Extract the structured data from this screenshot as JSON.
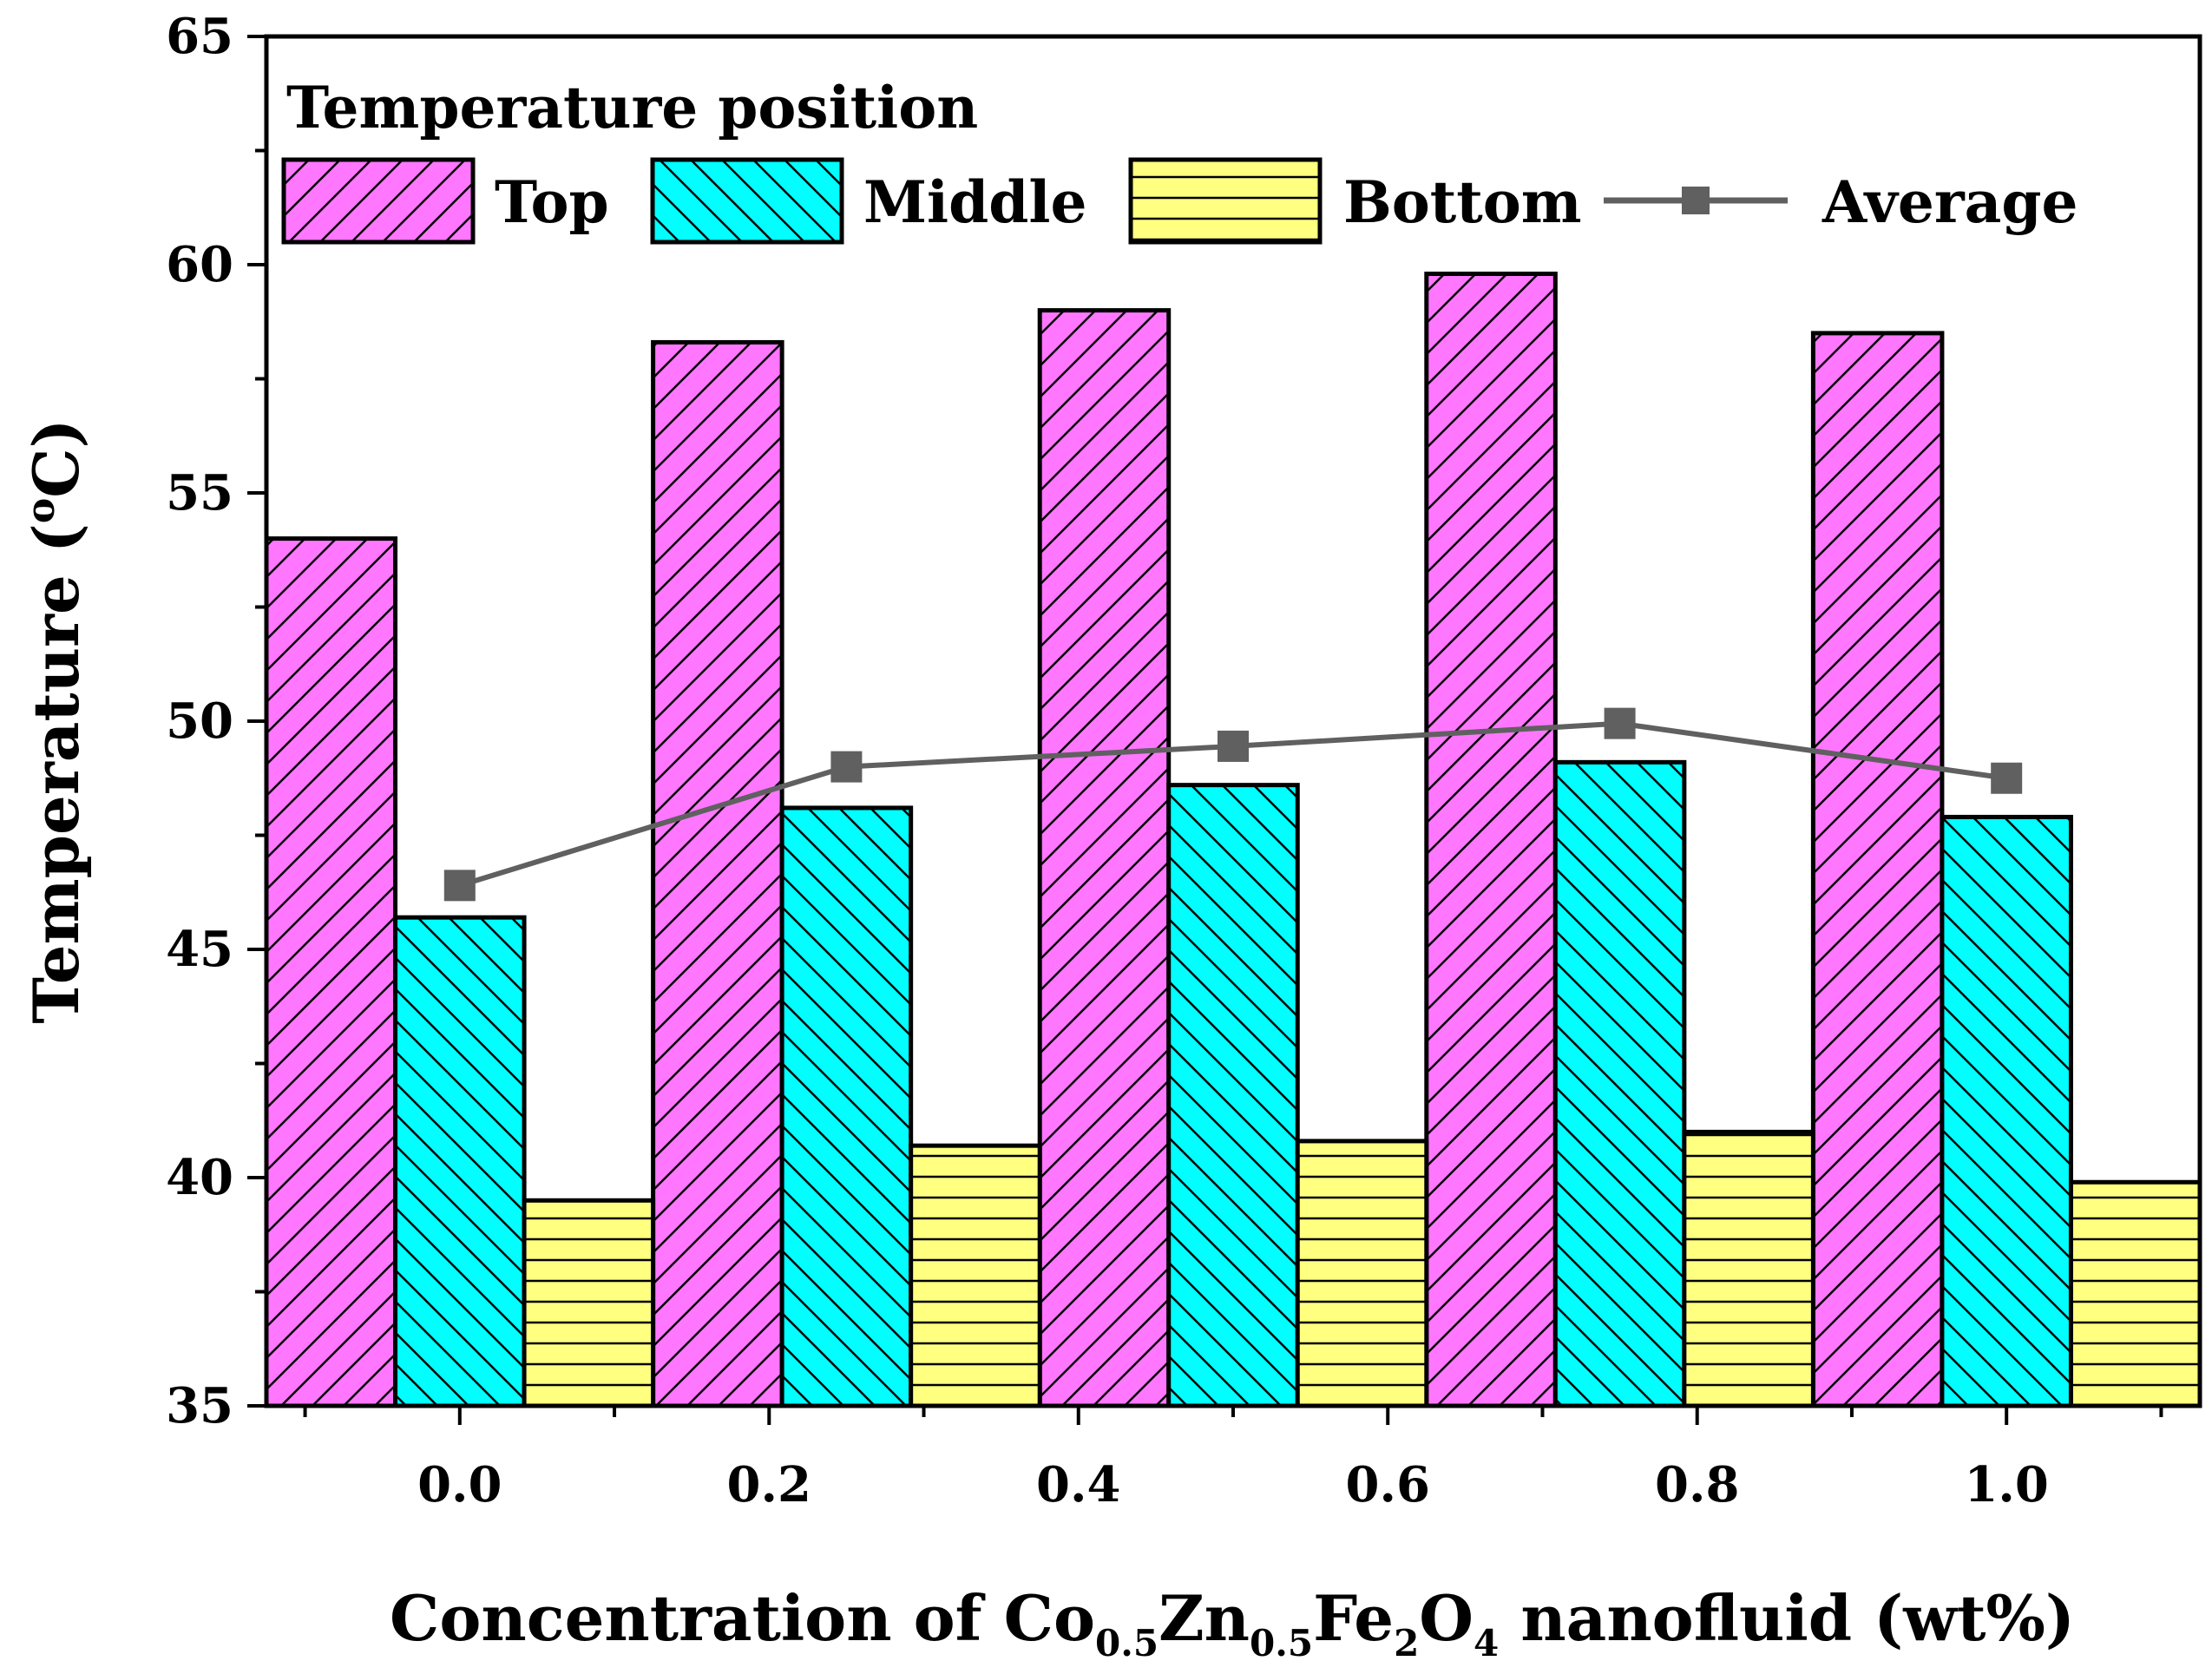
{
  "chart_data": {
    "type": "bar",
    "title": "",
    "x_ticks": [
      "0.0",
      "0.2",
      "0.4",
      "0.6",
      "0.8",
      "1.0"
    ],
    "x_tick_values": [
      0.0,
      0.2,
      0.4,
      0.6,
      0.8,
      1.0
    ],
    "xlim": [
      -0.125,
      1.125
    ],
    "groups_x": [
      0.0,
      0.25,
      0.5,
      0.75,
      1.0
    ],
    "ylim": [
      35,
      65
    ],
    "y_ticks": [
      35,
      40,
      45,
      50,
      55,
      60,
      65
    ],
    "xlabel": {
      "prefix": "Concentration of Co",
      "sub1": "0.5",
      "mid1": "Zn",
      "sub2": "0.5",
      "mid2": "Fe",
      "sub3": "2",
      "mid3": "O",
      "sub4": "4",
      "suffix": " nanofluid (wt%)"
    },
    "ylabel": {
      "prefix": "Temperature (",
      "sup": "o",
      "suffix": "C)"
    },
    "legend_title": "Temperature position",
    "series": [
      {
        "name": "Top",
        "kind": "bar",
        "color": "#ff77ff",
        "pattern": "diag-up",
        "values": [
          54.0,
          58.3,
          59.0,
          59.8,
          58.5
        ]
      },
      {
        "name": "Middle",
        "kind": "bar",
        "color": "#00ffff",
        "pattern": "diag-down",
        "values": [
          45.7,
          48.1,
          48.6,
          49.1,
          47.9
        ]
      },
      {
        "name": "Bottom",
        "kind": "bar",
        "color": "#ffff80",
        "pattern": "horizontal",
        "values": [
          39.5,
          40.7,
          40.8,
          41.0,
          39.9
        ]
      },
      {
        "name": "Average",
        "kind": "line",
        "color": "#606060",
        "values": [
          46.4,
          49.0,
          49.45,
          49.95,
          48.75
        ]
      }
    ]
  }
}
